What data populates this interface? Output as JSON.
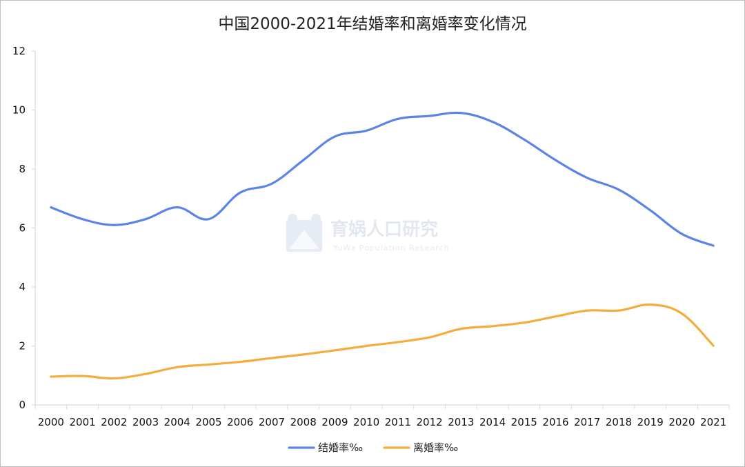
{
  "chart_data": {
    "type": "line",
    "title": "中国2000-2021年结婚率和离婚率变化情况",
    "categories": [
      "2000",
      "2001",
      "2002",
      "2003",
      "2004",
      "2005",
      "2006",
      "2007",
      "2008",
      "2009",
      "2010",
      "2011",
      "2012",
      "2013",
      "2014",
      "2015",
      "2016",
      "2017",
      "2018",
      "2019",
      "2020",
      "2021"
    ],
    "series": [
      {
        "name": "结婚率‰",
        "color": "#5b84e6",
        "values": [
          6.7,
          6.3,
          6.1,
          6.3,
          6.7,
          6.3,
          7.2,
          7.5,
          8.3,
          9.1,
          9.3,
          9.7,
          9.8,
          9.9,
          9.6,
          9.0,
          8.3,
          7.7,
          7.3,
          6.6,
          5.8,
          5.4
        ]
      },
      {
        "name": "离婚率‰",
        "color": "#f4ad3c",
        "values": [
          0.96,
          0.98,
          0.9,
          1.05,
          1.28,
          1.37,
          1.46,
          1.59,
          1.71,
          1.85,
          2.0,
          2.13,
          2.29,
          2.58,
          2.67,
          2.79,
          3.0,
          3.2,
          3.2,
          3.4,
          3.1,
          2.01
        ]
      }
    ],
    "yticks": [
      0,
      2,
      4,
      6,
      8,
      10,
      12
    ],
    "ylim": [
      0,
      12
    ],
    "grid": false,
    "legend_position": "bottom",
    "xlabel": "",
    "ylabel": ""
  },
  "watermark": {
    "text": "育娲人口研究",
    "subtext": "YuWa Population Research",
    "icon": "yuwa-logo-icon"
  },
  "colors": {
    "axis": "#d9d9d9"
  }
}
